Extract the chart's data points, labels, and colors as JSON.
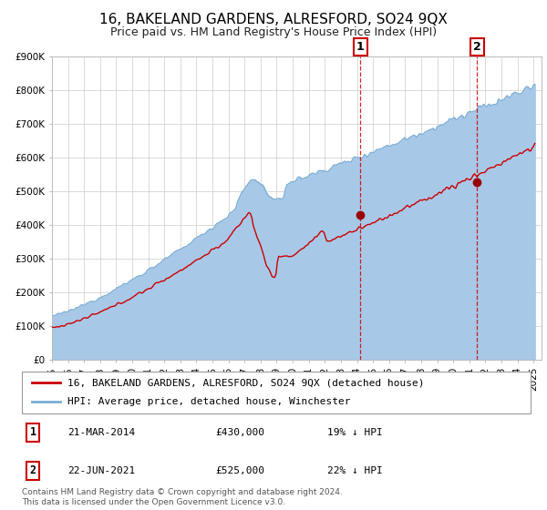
{
  "title": "16, BAKELAND GARDENS, ALRESFORD, SO24 9QX",
  "subtitle": "Price paid vs. HM Land Registry's House Price Index (HPI)",
  "ylim": [
    0,
    900000
  ],
  "yticks": [
    0,
    100000,
    200000,
    300000,
    400000,
    500000,
    600000,
    700000,
    800000,
    900000
  ],
  "ytick_labels": [
    "£0",
    "£100K",
    "£200K",
    "£300K",
    "£400K",
    "£500K",
    "£600K",
    "£700K",
    "£800K",
    "£900K"
  ],
  "xlim_start": 1995.0,
  "xlim_end": 2025.5,
  "xticks": [
    1995,
    1996,
    1997,
    1998,
    1999,
    2000,
    2001,
    2002,
    2003,
    2004,
    2005,
    2006,
    2007,
    2008,
    2009,
    2010,
    2011,
    2012,
    2013,
    2014,
    2015,
    2016,
    2017,
    2018,
    2019,
    2020,
    2021,
    2022,
    2023,
    2024,
    2025
  ],
  "sale1_x": 2014.22,
  "sale1_y": 430000,
  "sale1_date": "21-MAR-2014",
  "sale1_price": "£430,000",
  "sale1_hpi": "19% ↓ HPI",
  "sale2_x": 2021.47,
  "sale2_y": 525000,
  "sale2_date": "22-JUN-2021",
  "sale2_price": "£525,000",
  "sale2_hpi": "22% ↓ HPI",
  "hpi_color": "#a8c8e8",
  "hpi_line_color": "#7aaed4",
  "price_color": "#cc0000",
  "marker_color": "#990000",
  "dashed_line_color": "#cc0000",
  "legend_label_price": "16, BAKELAND GARDENS, ALRESFORD, SO24 9QX (detached house)",
  "legend_label_hpi": "HPI: Average price, detached house, Winchester",
  "footer_text": "Contains HM Land Registry data © Crown copyright and database right 2024.\nThis data is licensed under the Open Government Licence v3.0.",
  "background_color": "#ffffff",
  "grid_color": "#cccccc",
  "title_fontsize": 11,
  "subtitle_fontsize": 9,
  "tick_fontsize": 7.5,
  "legend_fontsize": 8,
  "footer_fontsize": 6.5
}
